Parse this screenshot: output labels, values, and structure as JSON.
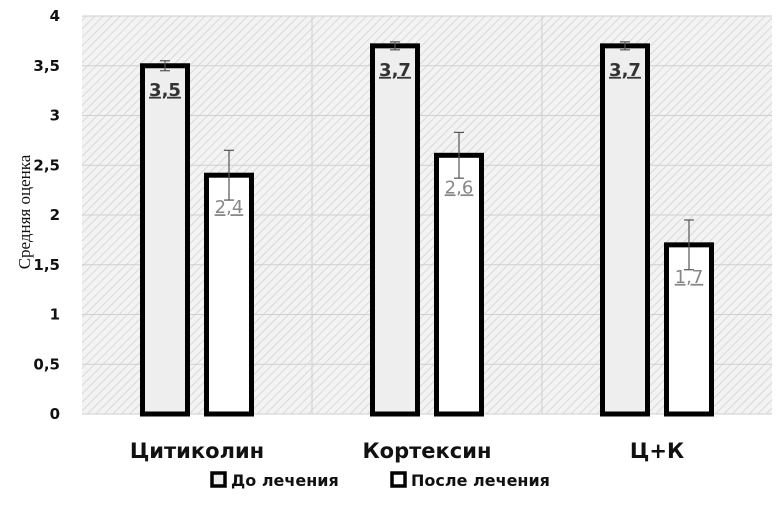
{
  "chart_data": {
    "type": "bar",
    "ylabel": "Средняя оценка",
    "ylim": [
      0,
      4
    ],
    "yticks": [
      "0",
      "0,5",
      "1",
      "1,5",
      "2",
      "2,5",
      "3",
      "3,5",
      "4"
    ],
    "categories": [
      "Цитиколин",
      "Кортексин",
      "Ц+К"
    ],
    "series": [
      {
        "name": "До лечения",
        "values": [
          3.5,
          3.7,
          3.7
        ],
        "labels": [
          "3,5",
          "3,7",
          "3,7"
        ],
        "error": [
          0.05,
          0.04,
          0.04
        ],
        "fill": "#eeeeee",
        "label_color": "#333333"
      },
      {
        "name": "После лечения",
        "values": [
          2.4,
          2.6,
          1.7
        ],
        "labels": [
          "2,4",
          "2,6",
          "1,7"
        ],
        "error": [
          0.25,
          0.23,
          0.25
        ],
        "fill": "#ffffff",
        "label_color": "#888888"
      }
    ],
    "grid": true,
    "legend": "bottom"
  }
}
